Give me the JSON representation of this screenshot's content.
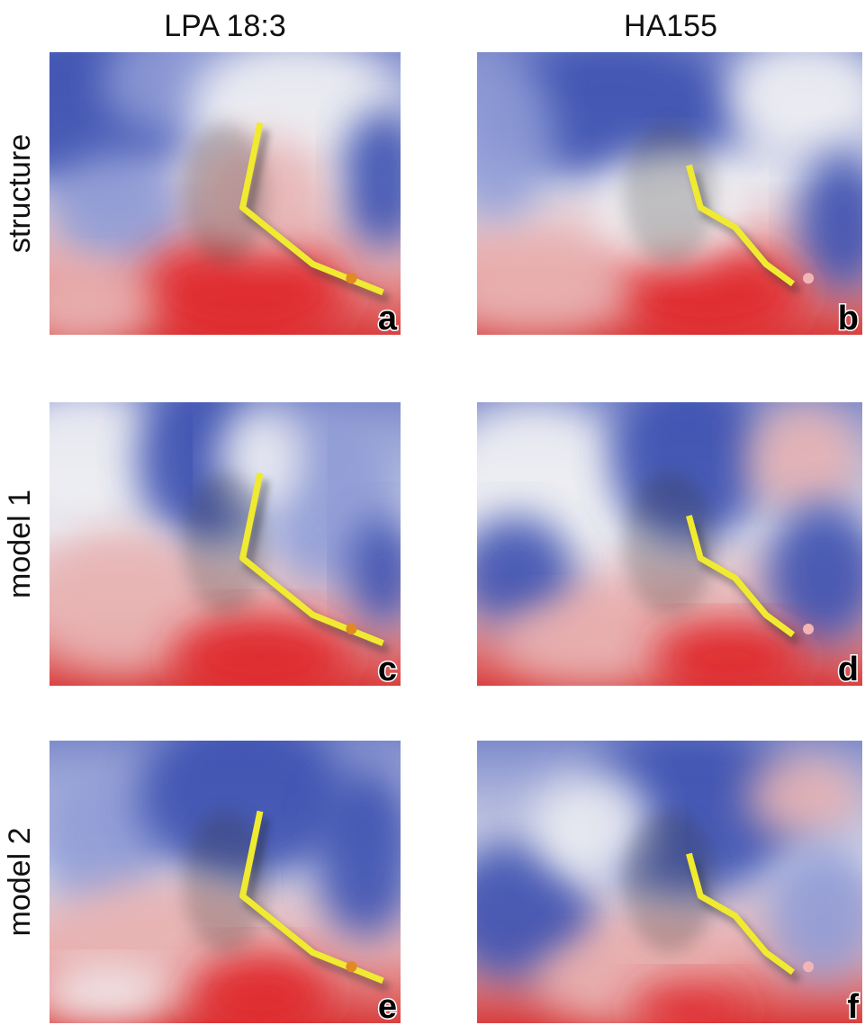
{
  "columns": [
    "LPA 18:3",
    "HA155"
  ],
  "rows": [
    "structure",
    "model 1",
    "model 2"
  ],
  "panels": [
    {
      "letter": "a"
    },
    {
      "letter": "b"
    },
    {
      "letter": "c"
    },
    {
      "letter": "d"
    },
    {
      "letter": "e"
    },
    {
      "letter": "f"
    }
  ]
}
